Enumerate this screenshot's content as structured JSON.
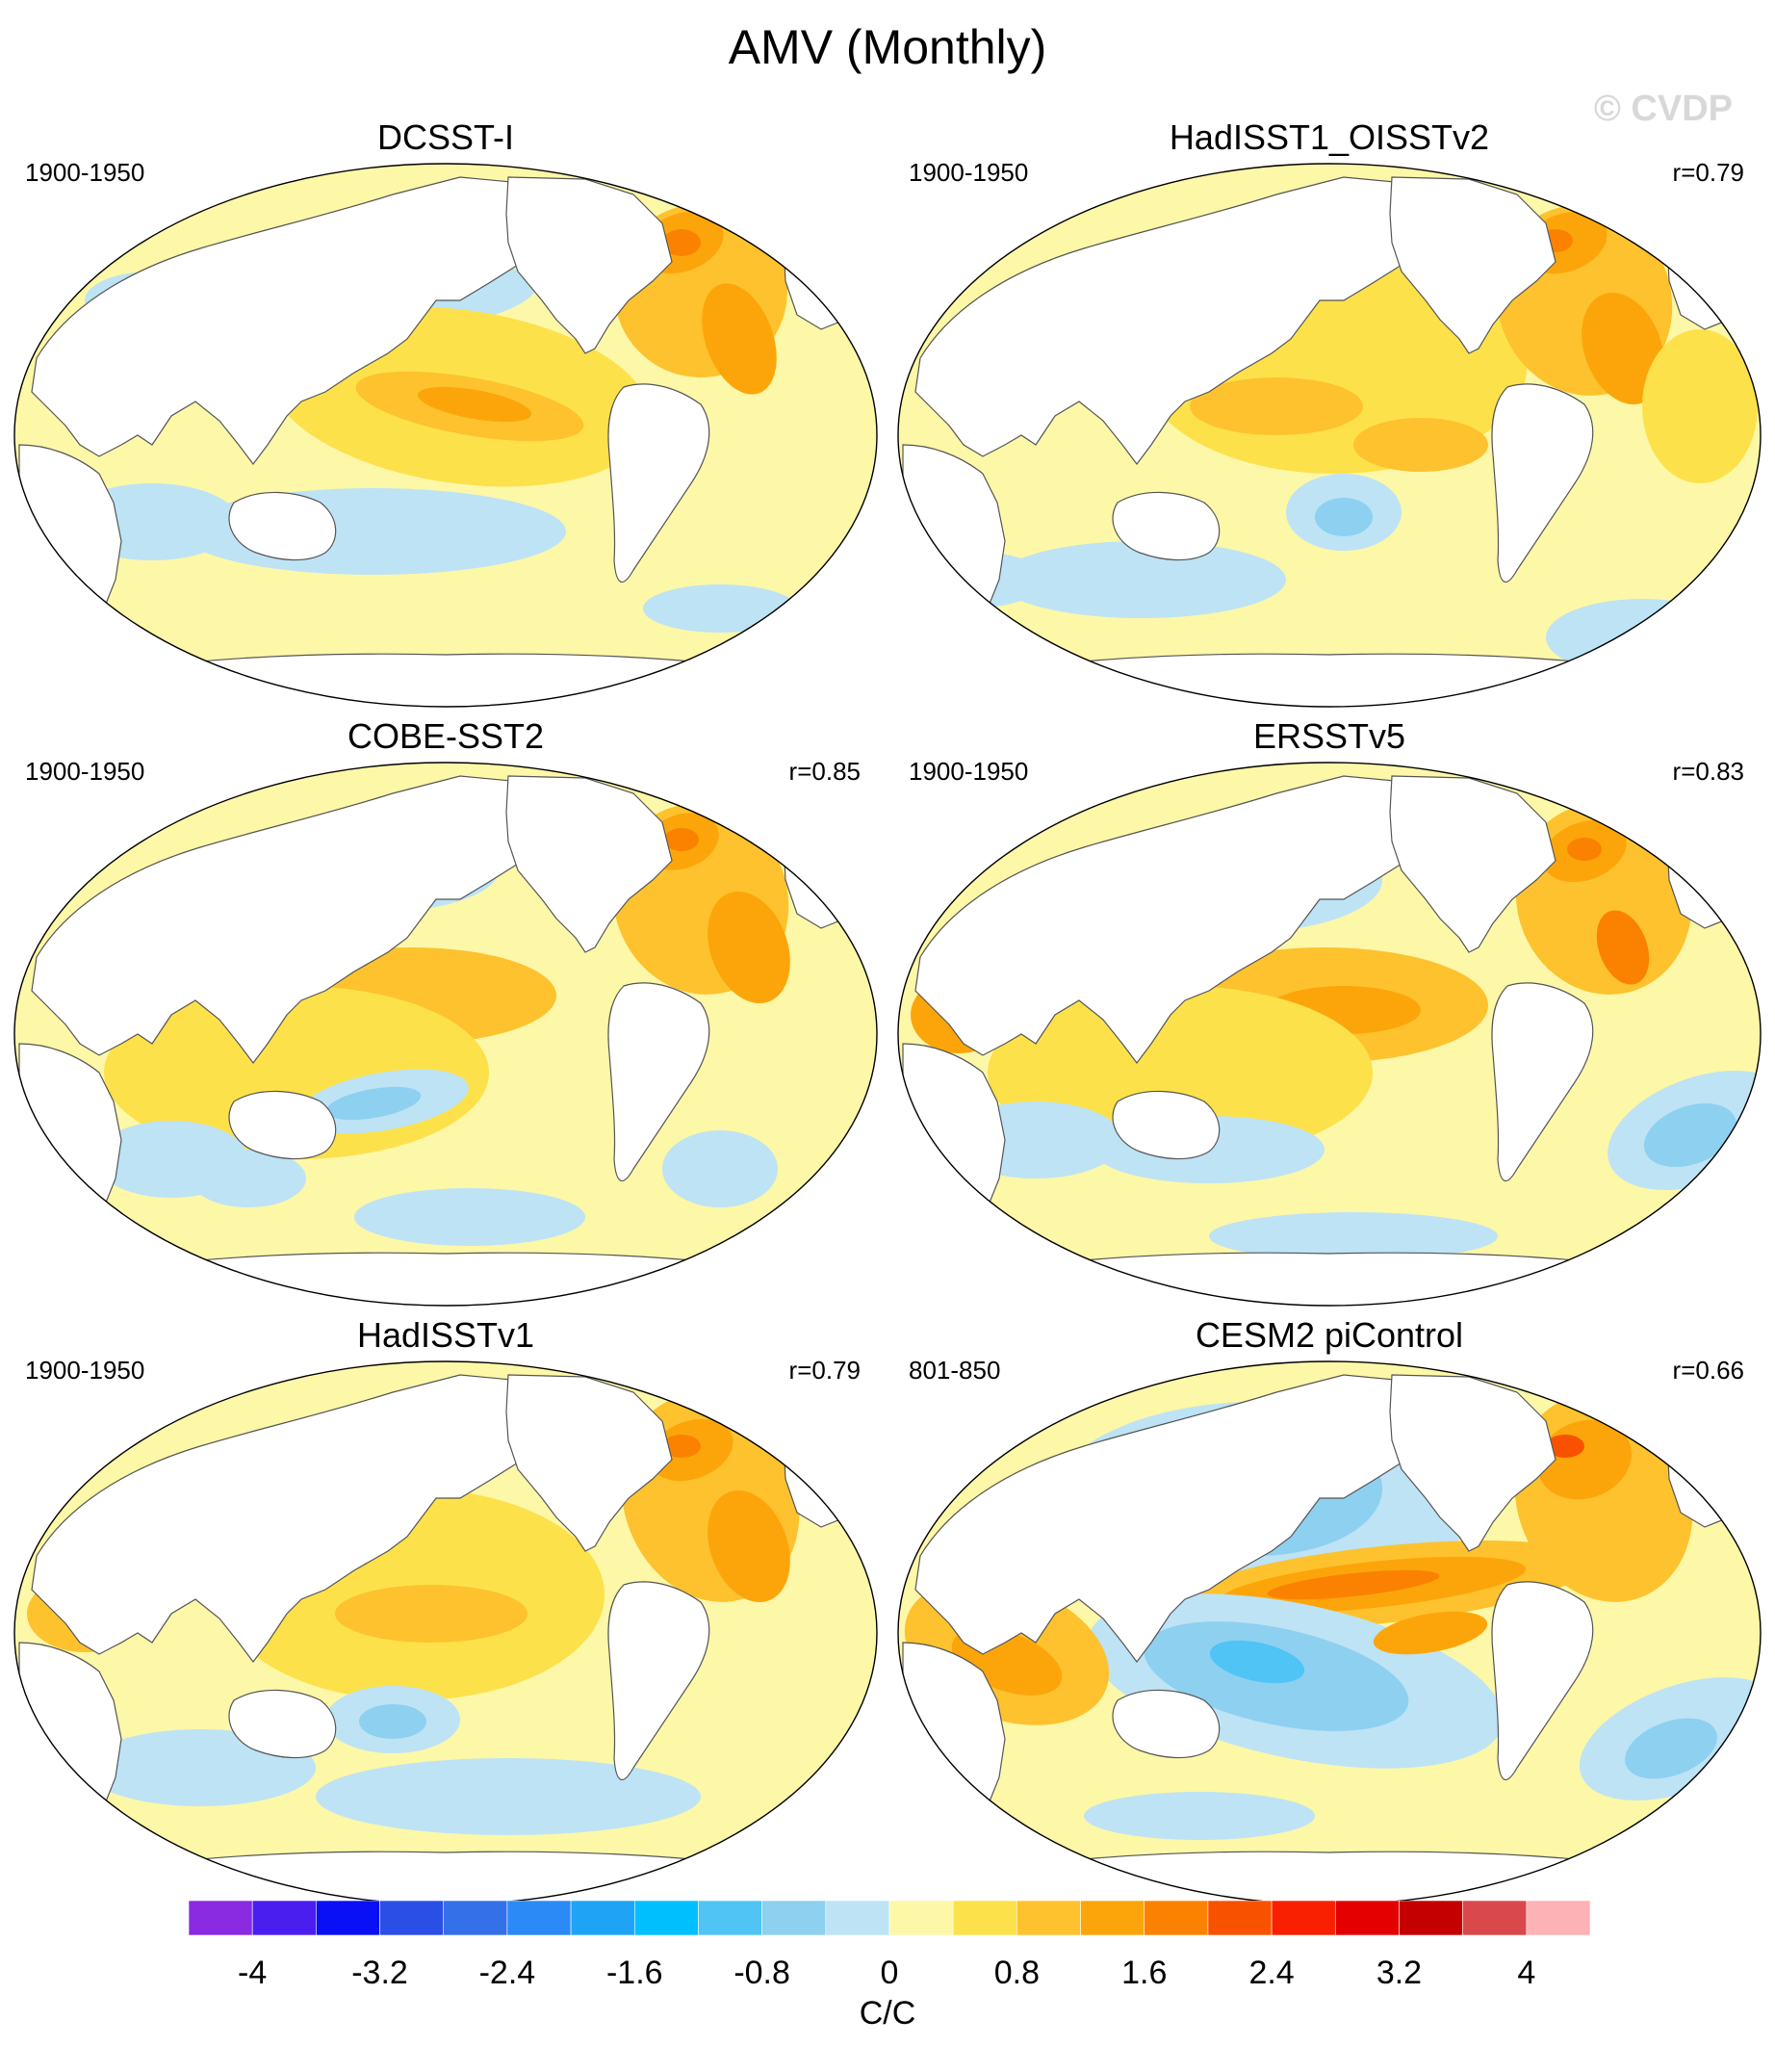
{
  "figure": {
    "title": "AMV (Monthly)",
    "watermark": "© CVDP",
    "units": "C/C"
  },
  "panels": [
    {
      "title": "DCSST-I",
      "period": "1900-1950",
      "corr": ""
    },
    {
      "title": "HadISST1_OISSTv2",
      "period": "1900-1950",
      "corr": "r=0.79"
    },
    {
      "title": "COBE-SST2",
      "period": "1900-1950",
      "corr": "r=0.85"
    },
    {
      "title": "ERSSTv5",
      "period": "1900-1950",
      "corr": "r=0.83"
    },
    {
      "title": "HadISSTv1",
      "period": "1900-1950",
      "corr": "r=0.79"
    },
    {
      "title": "CESM2 piControl",
      "period": "801-850",
      "corr": "r=0.66"
    }
  ],
  "colorbar": {
    "colors": [
      "#8a2be2",
      "#4b1ef0",
      "#0a10f5",
      "#2a4fe6",
      "#3470e8",
      "#2b8af5",
      "#1fa4f5",
      "#00bfff",
      "#4fc4f5",
      "#8ed0f0",
      "#bde3f5",
      "#fdf7a8",
      "#fde14a",
      "#fdc22e",
      "#fca50a",
      "#fb8200",
      "#f85200",
      "#f82000",
      "#e30000",
      "#c40000",
      "#d9484b",
      "#fdb2b6"
    ],
    "ticks": [
      "-4",
      "-3.2",
      "-2.4",
      "-1.6",
      "-0.8",
      "0",
      "0.8",
      "1.6",
      "2.4",
      "3.2",
      "4"
    ]
  },
  "palette": {
    "ocean_base": "#fdf7a8",
    "land": "#ffffff",
    "warm1": "#fde14a",
    "warm2": "#fdc22e",
    "warm3": "#fca50a",
    "warm4": "#fb8200",
    "warm5": "#f85200",
    "cool1": "#bde3f5",
    "cool2": "#8ed0f0",
    "cool3": "#4fc4f5",
    "cool4": "#1fa4f5"
  }
}
